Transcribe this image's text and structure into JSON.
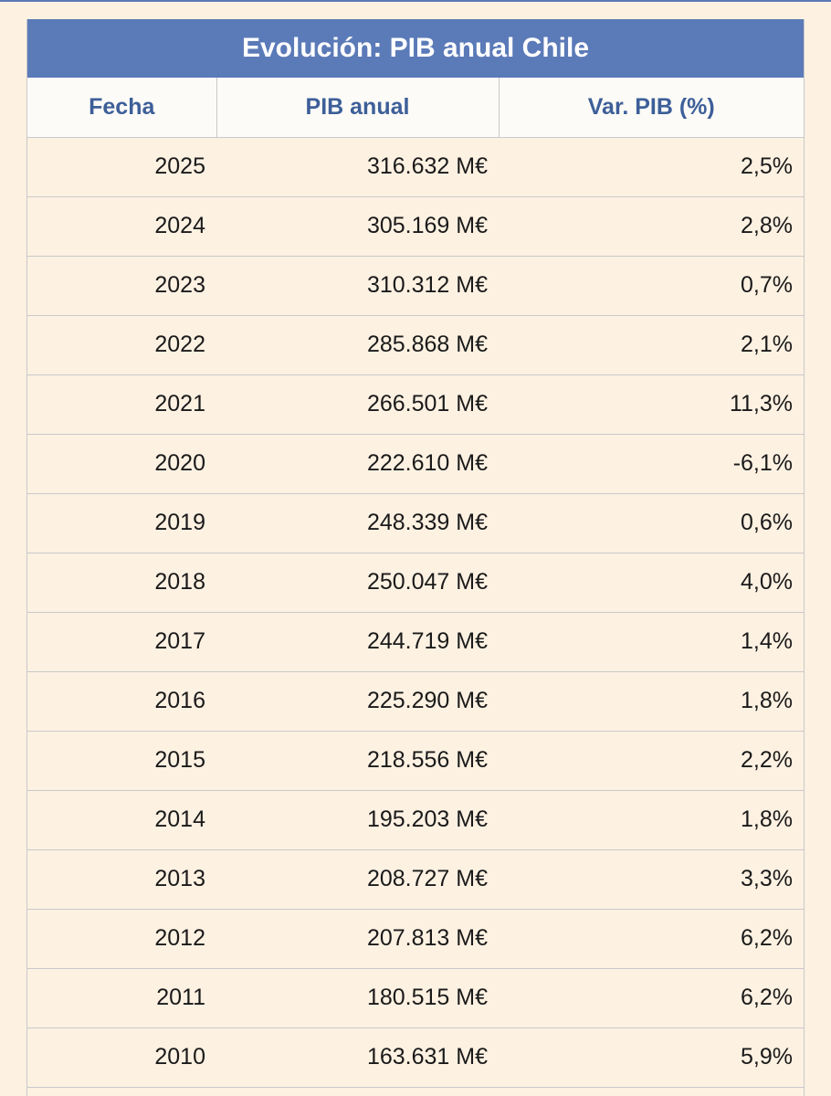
{
  "title": "Evolución: PIB anual Chile",
  "headers": [
    "Fecha",
    "PIB anual",
    "Var. PIB (%)"
  ],
  "rows": [
    {
      "fecha": "2025",
      "pib": "316.632 M€",
      "var": "2,5%"
    },
    {
      "fecha": "2024",
      "pib": "305.169 M€",
      "var": "2,8%"
    },
    {
      "fecha": "2023",
      "pib": "310.312 M€",
      "var": "0,7%"
    },
    {
      "fecha": "2022",
      "pib": "285.868 M€",
      "var": "2,1%"
    },
    {
      "fecha": "2021",
      "pib": "266.501 M€",
      "var": "11,3%"
    },
    {
      "fecha": "2020",
      "pib": "222.610 M€",
      "var": "-6,1%"
    },
    {
      "fecha": "2019",
      "pib": "248.339 M€",
      "var": "0,6%"
    },
    {
      "fecha": "2018",
      "pib": "250.047 M€",
      "var": "4,0%"
    },
    {
      "fecha": "2017",
      "pib": "244.719 M€",
      "var": "1,4%"
    },
    {
      "fecha": "2016",
      "pib": "225.290 M€",
      "var": "1,8%"
    },
    {
      "fecha": "2015",
      "pib": "218.556 M€",
      "var": "2,2%"
    },
    {
      "fecha": "2014",
      "pib": "195.203 M€",
      "var": "1,8%"
    },
    {
      "fecha": "2013",
      "pib": "208.727 M€",
      "var": "3,3%"
    },
    {
      "fecha": "2012",
      "pib": "207.813 M€",
      "var": "6,2%"
    },
    {
      "fecha": "2011",
      "pib": "180.515 M€",
      "var": "6,2%"
    },
    {
      "fecha": "2010",
      "pib": "163.631 M€",
      "var": "5,9%"
    }
  ],
  "colors": {
    "header_bg": "#5b7ab8",
    "header_text": "#3d5f99",
    "page_bg": "#fdf1e2",
    "grid": "#c9c9c9"
  }
}
